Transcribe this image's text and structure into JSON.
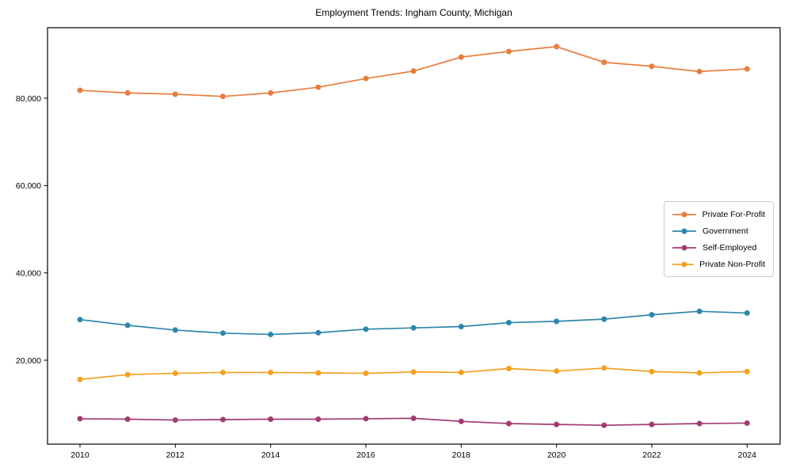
{
  "chart_data": {
    "type": "line",
    "title": "Employment Trends: Ingham County, Michigan",
    "xlabel": "",
    "ylabel": "",
    "x": [
      2010,
      2011,
      2012,
      2013,
      2014,
      2015,
      2016,
      2017,
      2018,
      2019,
      2020,
      2021,
      2022,
      2023,
      2024
    ],
    "series": [
      {
        "name": "Private For-Profit",
        "color": "#e87d3e",
        "values": [
          81800,
          81200,
          80900,
          80400,
          81200,
          82500,
          84500,
          86200,
          89400,
          90700,
          91800,
          88200,
          87300,
          86100,
          86700
        ]
      },
      {
        "name": "Government",
        "color": "#2e86ab",
        "values": [
          29300,
          28000,
          26900,
          26200,
          25900,
          26300,
          27100,
          27400,
          27700,
          28600,
          28900,
          29400,
          30400,
          31200,
          30800
        ]
      },
      {
        "name": "Self-Employed",
        "color": "#a23b72",
        "values": [
          6600,
          6500,
          6300,
          6400,
          6500,
          6500,
          6600,
          6700,
          6000,
          5500,
          5300,
          5100,
          5300,
          5500,
          5600
        ]
      },
      {
        "name": "Private Non-Profit",
        "color": "#f5a01e",
        "values": [
          15600,
          16700,
          17000,
          17200,
          17200,
          17100,
          17000,
          17300,
          17200,
          18100,
          17500,
          18200,
          17400,
          17100,
          17400
        ]
      }
    ],
    "xticks": [
      2010,
      2012,
      2014,
      2016,
      2018,
      2020,
      2022,
      2024
    ],
    "yticks": [
      20000,
      40000,
      60000,
      80000
    ],
    "ytick_labels": [
      "20,000",
      "40,000",
      "60,000",
      "80,000"
    ],
    "xlim": [
      2009.3,
      2024.7
    ],
    "ylim": [
      900,
      96300
    ],
    "grid": false,
    "marker": "circle",
    "legend_position": "center-right",
    "axis_color": "#000000"
  }
}
